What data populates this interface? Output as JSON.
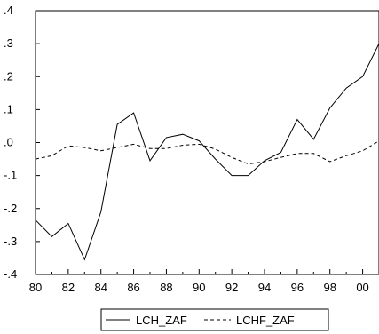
{
  "chart_data": {
    "type": "line",
    "title": "",
    "xlabel": "",
    "ylabel": "",
    "x": [
      1980,
      1981,
      1982,
      1983,
      1984,
      1985,
      1986,
      1987,
      1988,
      1989,
      1990,
      1991,
      1992,
      1993,
      1994,
      1995,
      1996,
      1997,
      1998,
      1999,
      2000,
      2001
    ],
    "xlim": [
      1980,
      2001
    ],
    "ylim": [
      -0.4,
      0.4
    ],
    "x_tick_values": [
      1980,
      1982,
      1984,
      1986,
      1988,
      1990,
      1992,
      1994,
      1996,
      1998,
      2000
    ],
    "x_tick_labels": [
      "80",
      "82",
      "84",
      "86",
      "88",
      "90",
      "92",
      "94",
      "96",
      "98",
      "00"
    ],
    "y_tick_values": [
      -0.4,
      -0.3,
      -0.2,
      -0.1,
      0.0,
      0.1,
      0.2,
      0.3,
      0.4
    ],
    "y_tick_labels": [
      "-.4",
      "-.3",
      "-.2",
      "-.1",
      ".0",
      ".1",
      ".2",
      ".3",
      ".4"
    ],
    "grid": false,
    "legend_position": "bottom-center",
    "series": [
      {
        "name": "LCH_ZAF",
        "style": "solid",
        "color": "#000000",
        "values": [
          -0.235,
          -0.285,
          -0.245,
          -0.355,
          -0.21,
          0.055,
          0.09,
          -0.055,
          0.015,
          0.025,
          0.005,
          -0.05,
          -0.1,
          -0.1,
          -0.055,
          -0.03,
          0.07,
          0.01,
          0.105,
          0.165,
          0.2,
          0.3
        ]
      },
      {
        "name": "LCHF_ZAF",
        "style": "dashed",
        "color": "#000000",
        "values": [
          -0.05,
          -0.04,
          -0.01,
          -0.015,
          -0.025,
          -0.015,
          -0.005,
          -0.018,
          -0.018,
          -0.008,
          -0.005,
          -0.02,
          -0.045,
          -0.065,
          -0.058,
          -0.045,
          -0.033,
          -0.033,
          -0.058,
          -0.04,
          -0.025,
          0.005
        ]
      }
    ]
  }
}
